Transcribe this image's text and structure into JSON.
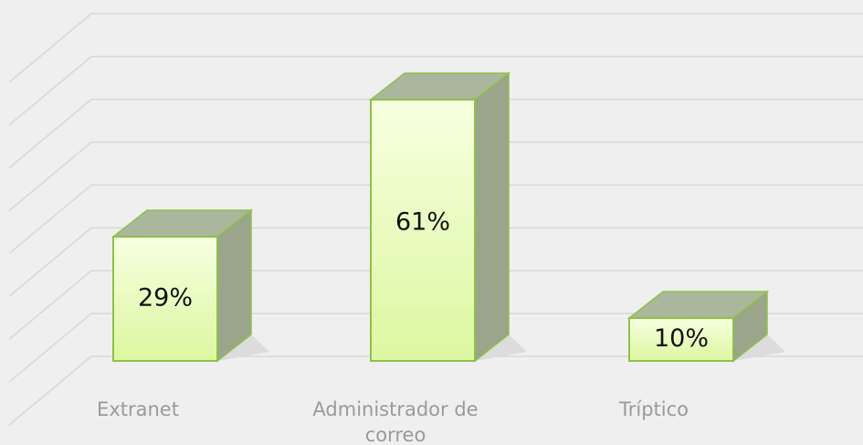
{
  "chart_data": {
    "type": "bar3d",
    "categories": [
      "Extranet",
      "Administrador de correo",
      "Tríptico"
    ],
    "values": [
      29,
      61,
      10
    ],
    "value_labels": [
      "29%",
      "61%",
      "10%"
    ],
    "color": "#e8fbb8",
    "ylim": [
      0,
      80
    ],
    "yticks": [
      0,
      10,
      20,
      30,
      40,
      50,
      60,
      70,
      80
    ],
    "grid": true
  }
}
